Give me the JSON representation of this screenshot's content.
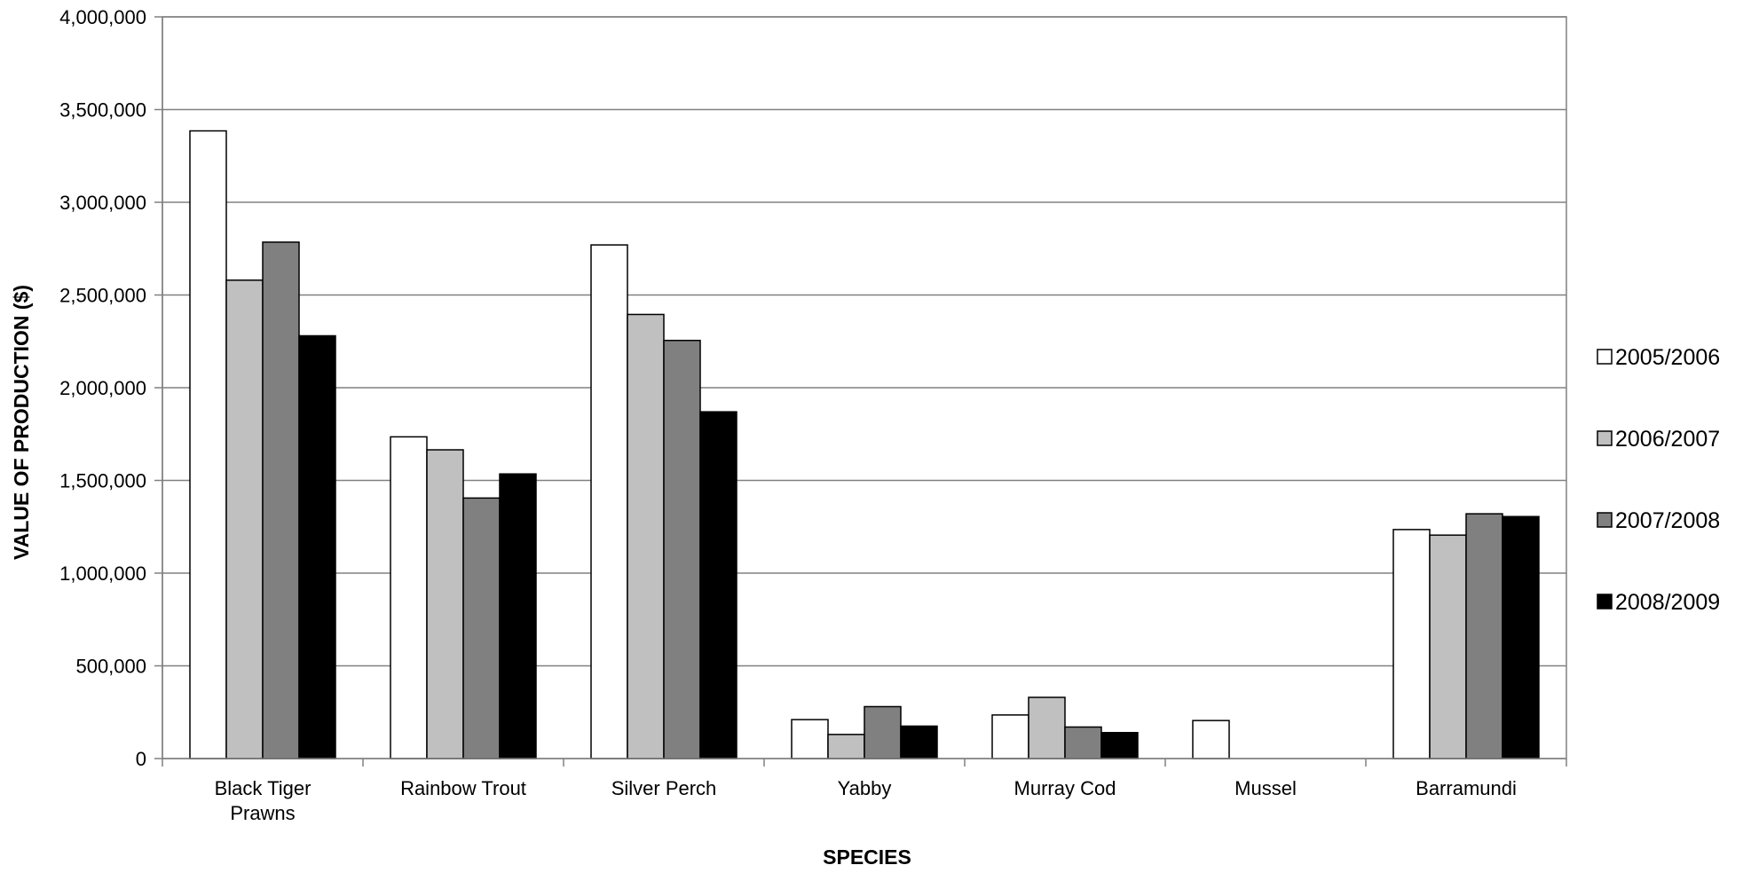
{
  "chart_data": {
    "type": "bar",
    "title": "",
    "xlabel": "SPECIES",
    "ylabel": "VALUE OF PRODUCTION ($)",
    "ylim": [
      0,
      4000000
    ],
    "y_ticks": [
      0,
      500000,
      1000000,
      1500000,
      2000000,
      2500000,
      3000000,
      3500000,
      4000000
    ],
    "y_tick_labels": [
      "0",
      "500,000",
      "1,000,000",
      "1,500,000",
      "2,000,000",
      "2,500,000",
      "3,000,000",
      "3,500,000",
      "4,000,000"
    ],
    "grid": true,
    "legend_position": "right",
    "categories": [
      "Black Tiger Prawns",
      "Rainbow Trout",
      "Silver Perch",
      "Yabby",
      "Murray Cod",
      "Mussel",
      "Barramundi"
    ],
    "category_label_lines": [
      [
        "Black Tiger",
        "Prawns"
      ],
      [
        "Rainbow Trout"
      ],
      [
        "Silver Perch"
      ],
      [
        "Yabby"
      ],
      [
        "Murray Cod"
      ],
      [
        "Mussel"
      ],
      [
        "Barramundi"
      ]
    ],
    "series": [
      {
        "name": "2005/2006",
        "color": "#ffffff",
        "values": [
          3385000,
          1735000,
          2770000,
          210000,
          235000,
          205000,
          1235000
        ]
      },
      {
        "name": "2006/2007",
        "color": "#c0c0c0",
        "values": [
          2580000,
          1665000,
          2395000,
          130000,
          330000,
          0,
          1205000
        ]
      },
      {
        "name": "2007/2008",
        "color": "#808080",
        "values": [
          2785000,
          1405000,
          2255000,
          280000,
          170000,
          0,
          1320000
        ]
      },
      {
        "name": "2008/2009",
        "color": "#000000",
        "values": [
          2280000,
          1535000,
          1870000,
          175000,
          140000,
          0,
          1305000
        ]
      }
    ]
  }
}
